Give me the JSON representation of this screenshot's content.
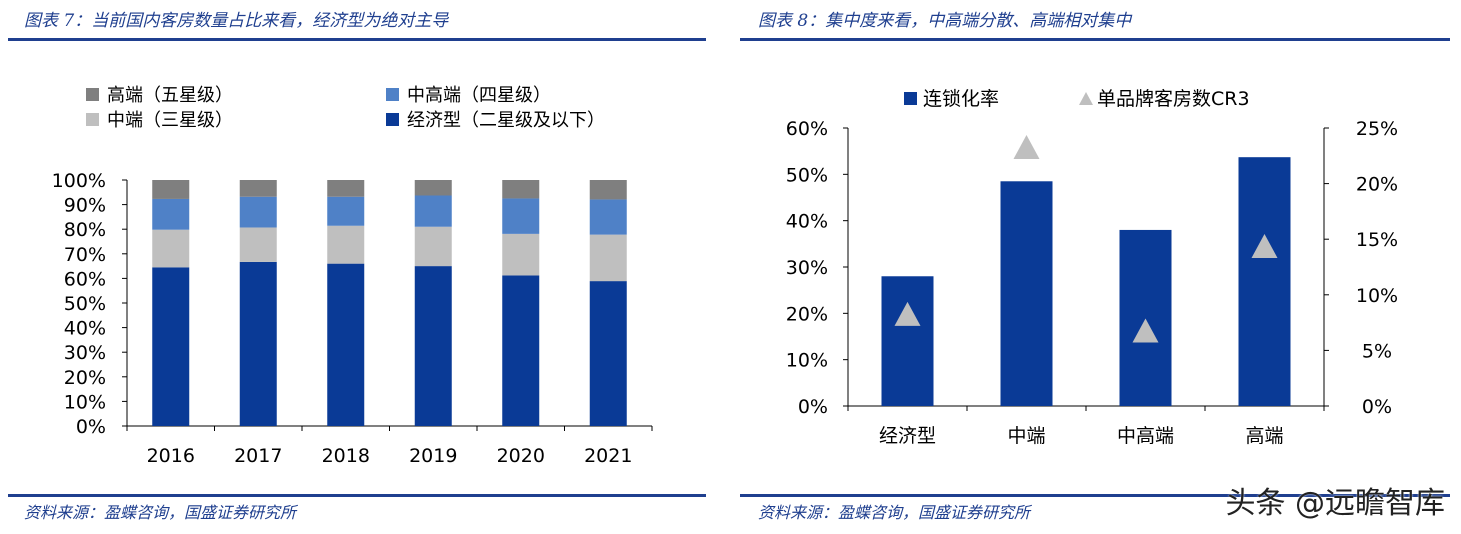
{
  "left": {
    "title": "图表 7：当前国内客房数量占比来看，经济型为绝对主导",
    "source": "资料来源：盈蝶咨询，国盛证券研究所",
    "chart_data": {
      "type": "bar",
      "stacked": true,
      "categories": [
        "2016",
        "2017",
        "2018",
        "2019",
        "2020",
        "2021"
      ],
      "series": [
        {
          "name": "经济型（二星级及以下）",
          "color": "#0a3a96",
          "values": [
            64.5,
            66.7,
            66.0,
            65.0,
            61.2,
            58.9
          ]
        },
        {
          "name": "中端（三星级）",
          "color": "#bfbfbf",
          "values": [
            15.3,
            14.0,
            15.4,
            16.0,
            16.9,
            18.9
          ]
        },
        {
          "name": "中高端（四星级）",
          "color": "#4f81c7",
          "values": [
            12.5,
            12.5,
            11.8,
            12.7,
            14.4,
            14.3
          ]
        },
        {
          "name": "高端（五星级）",
          "color": "#7f7f7f",
          "values": [
            7.7,
            6.8,
            6.8,
            6.3,
            7.5,
            7.9
          ]
        }
      ],
      "ylim": [
        0,
        100
      ],
      "yticks": [
        "0%",
        "10%",
        "20%",
        "30%",
        "40%",
        "50%",
        "60%",
        "70%",
        "80%",
        "90%",
        "100%"
      ],
      "legend_order": [
        3,
        2,
        1,
        0
      ],
      "legend_placement": "top"
    }
  },
  "right": {
    "title": "图表 8：集中度来看，中高端分散、高端相对集中",
    "source": "资料来源：盈蝶咨询，国盛证券研究所",
    "chart_data": {
      "type": "bar",
      "categories": [
        "经济型",
        "中端",
        "中高端",
        "高端"
      ],
      "series": [
        {
          "name": "连锁化率",
          "kind": "bar",
          "axis": "left",
          "color": "#0a3a96",
          "values": [
            28.0,
            48.5,
            38.0,
            53.7
          ]
        },
        {
          "name": "单品牌客房数CR3",
          "kind": "marker",
          "marker": "triangle",
          "axis": "right",
          "color": "#bfbfbf",
          "values": [
            8.2,
            23.2,
            6.7,
            14.3
          ]
        }
      ],
      "ylim_left": [
        0,
        60
      ],
      "ylim_right": [
        0,
        25
      ],
      "yticks_left": [
        "0%",
        "10%",
        "20%",
        "30%",
        "40%",
        "50%",
        "60%"
      ],
      "yticks_right": [
        "0%",
        "5%",
        "10%",
        "15%",
        "20%",
        "25%"
      ],
      "legend_placement": "top"
    }
  },
  "watermark": "头条 @远瞻智库"
}
